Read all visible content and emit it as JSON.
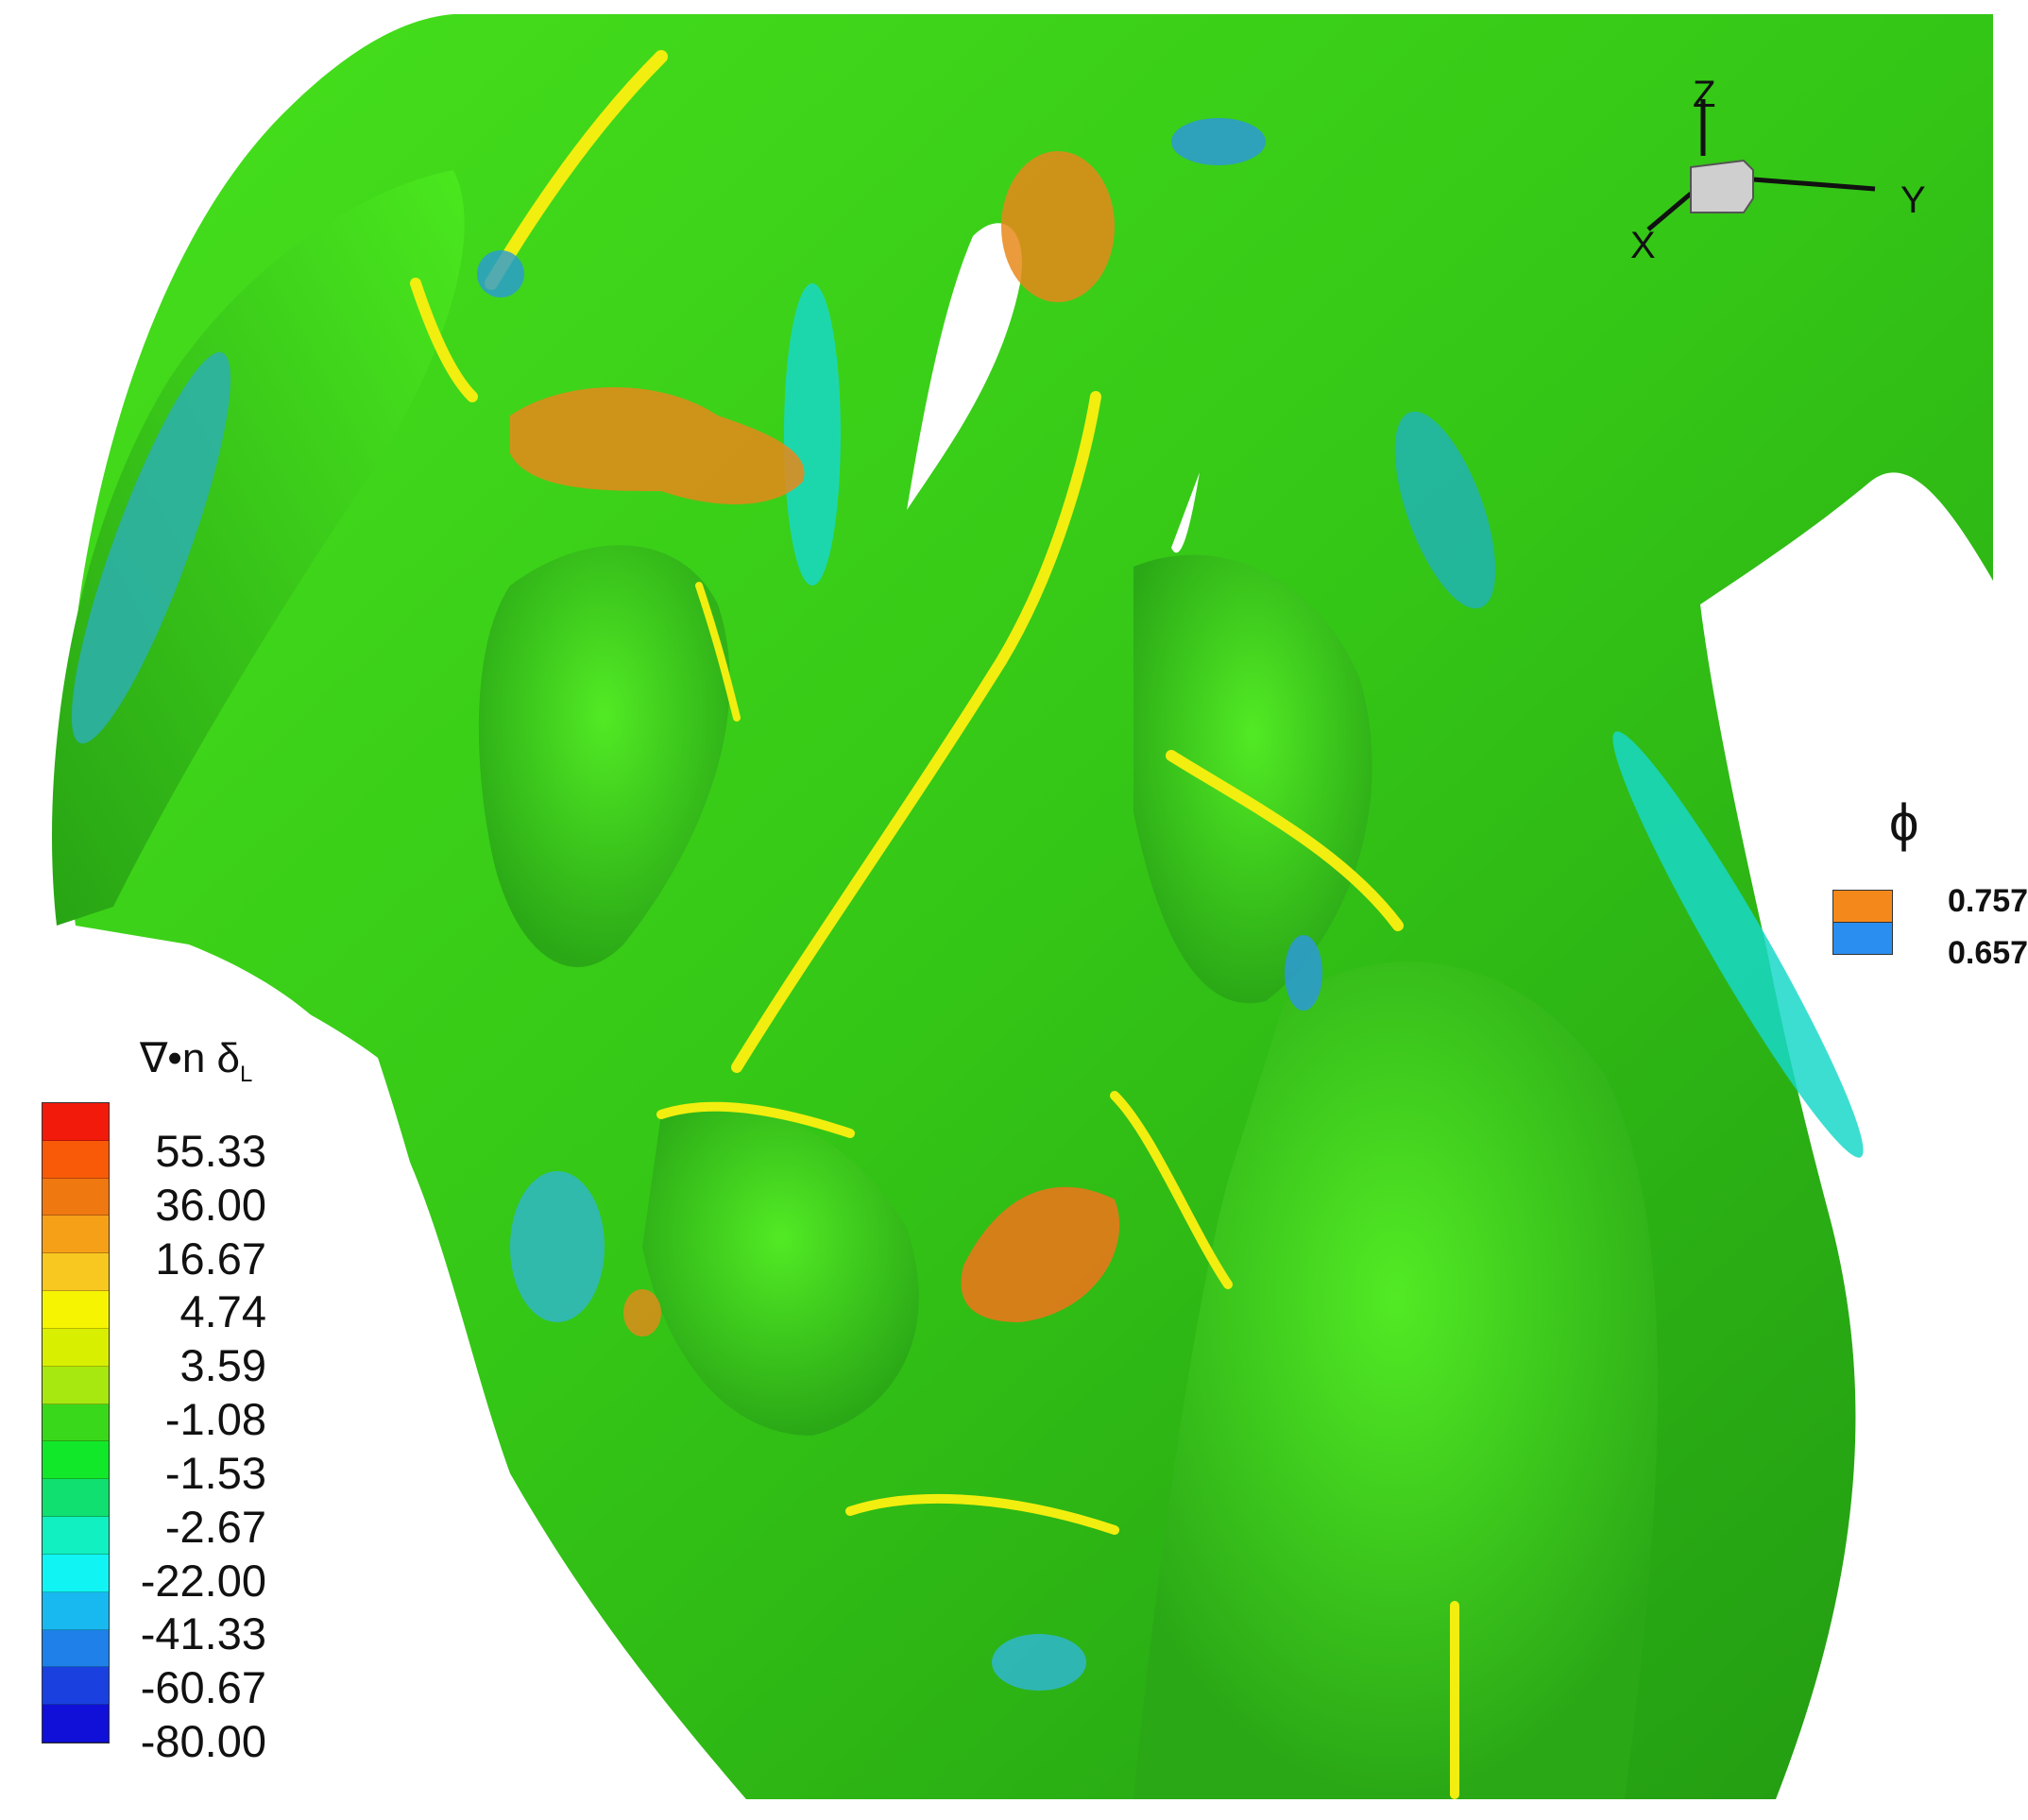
{
  "colorbar": {
    "title": "∇•n δ",
    "title_subscript": "L",
    "labels": [
      "55.33",
      "36.00",
      "16.67",
      "4.74",
      "3.59",
      "-1.08",
      "-1.53",
      "-2.67",
      "-22.00",
      "-41.33",
      "-60.67",
      "-80.00"
    ],
    "band_colors": [
      "#f21a0a",
      "#f85a08",
      "#f07810",
      "#f6a018",
      "#f8c820",
      "#f6f400",
      "#d8f000",
      "#a6e810",
      "#3ad81a",
      "#12e82a",
      "#10e070",
      "#10f0c0",
      "#10f4f4",
      "#18b8f0",
      "#1e80e8",
      "#1a40e0",
      "#1010d8"
    ]
  },
  "axes_triad": {
    "x": "X",
    "y": "Y",
    "z": "Z"
  },
  "phi_legend": {
    "title": "ϕ",
    "items": [
      {
        "label": "0.757",
        "color": "#f4881a"
      },
      {
        "label": "0.657",
        "color": "#2a8ef0"
      }
    ]
  },
  "surface_colors": {
    "base": "#3fd41a",
    "dark": "#1f9a12",
    "ridge": "#f2ee10",
    "trough": "#18d8c8",
    "mesh_orange": "#e8781a",
    "mesh_blue": "#2a9ad8"
  }
}
